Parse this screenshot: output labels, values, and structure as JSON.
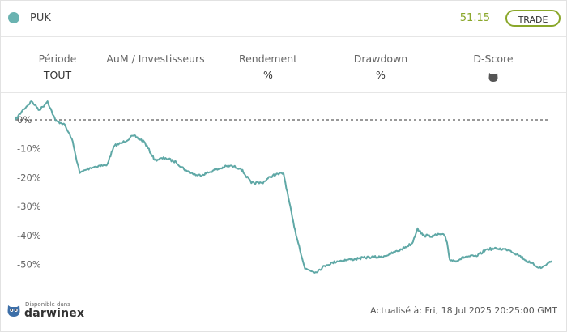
{
  "header": {
    "ticker": "PUK",
    "price": "51.15",
    "trade_label": "TRADE"
  },
  "stats": [
    {
      "label": "Période",
      "value": "TOUT"
    },
    {
      "label": "AuM / Investisseurs",
      "value": ""
    },
    {
      "label": "Rendement",
      "value": "%"
    },
    {
      "label": "Drawdown",
      "value": "%"
    },
    {
      "label": "D-Score",
      "value": ""
    }
  ],
  "chart_data": {
    "type": "line",
    "ylabel_ticks": [
      "0%",
      "-10%",
      "-20%",
      "-30%",
      "-40%",
      "-50%"
    ],
    "y_ticks": [
      0,
      -10,
      -20,
      -30,
      -40,
      -50
    ],
    "ylim": [
      -58,
      7
    ],
    "baseline": 0,
    "grid": false,
    "color": "#5fa8a6",
    "series": [
      {
        "x": [
          0,
          1.5,
          3,
          4.5,
          6,
          7.5,
          9,
          10.5,
          12,
          13,
          14,
          15.5,
          17,
          18.5,
          20,
          22,
          24,
          26,
          28,
          30,
          32,
          34,
          36,
          37,
          38,
          39,
          40,
          42,
          44,
          46,
          48,
          50,
          52,
          54,
          56,
          58,
          60,
          62,
          64,
          66,
          68,
          70,
          72,
          74,
          75,
          76,
          77,
          78,
          79,
          80,
          80.5,
          81,
          82,
          84,
          86,
          88,
          90,
          92,
          94,
          96,
          98,
          100
        ],
        "values": [
          0,
          3.6,
          6.4,
          3.4,
          6.4,
          -0.4,
          -1.3,
          -6.4,
          -18.4,
          -17.4,
          -16.6,
          -15.9,
          -15.8,
          -8.9,
          -7.9,
          -5.5,
          -7.5,
          -13.9,
          -13.2,
          -14.7,
          -17.8,
          -19.3,
          -18.3,
          -17.4,
          -17.0,
          -16.3,
          -15.9,
          -16.8,
          -21.9,
          -21.8,
          -19.2,
          -18.5,
          -37.1,
          -51.5,
          -52.7,
          -50.2,
          -48.9,
          -48.4,
          -48.0,
          -47.5,
          -47.5,
          -46.4,
          -44.8,
          -42.7,
          -37.5,
          -40.0,
          -40.1,
          -40.2,
          -39.6,
          -40.0,
          -42.4,
          -48.4,
          -48.8,
          -47.3,
          -47.2,
          -44.7,
          -44.6,
          -44.9,
          -47.0,
          -49.5,
          -51.3,
          -48.8
        ]
      }
    ]
  },
  "footer": {
    "logo_small": "Disponible dans",
    "logo_big": "darwinex",
    "updated": "Actualisé à: Fri, 18 Jul 2025 20:25:00 GMT"
  }
}
